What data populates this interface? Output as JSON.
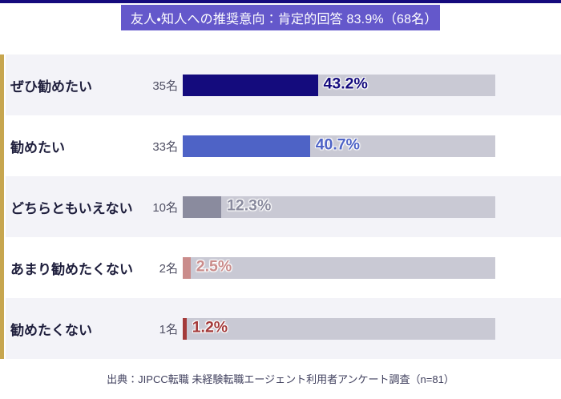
{
  "title": {
    "text": "友人・知人への推奨意向：肯定的回答 83.9%（68名）",
    "bg_color": "#6458cb",
    "text_color": "#ffffff"
  },
  "footer": {
    "text": "出典：JIPCC転職 未経験転職エージェント利用者アンケート調査（n=81）"
  },
  "colors": {
    "top_strip": "#150b7d",
    "left_accent": "#c7a64f",
    "row_band": "#f3f3f8",
    "row_alt": "#ffffff",
    "bar_track": "#c9c9d4"
  },
  "chart_data": {
    "type": "bar",
    "orientation": "horizontal",
    "title": "友人・知人への推奨意向：肯定的回答 83.9%（68名）",
    "categories": [
      "ぜひ勧めたい",
      "勧めたい",
      "どちらともいえない",
      "あまり勧めたくない",
      "勧めたくない"
    ],
    "counts": [
      "35名",
      "33名",
      "10名",
      "2名",
      "1名"
    ],
    "values": [
      43.2,
      40.7,
      12.3,
      2.5,
      1.2
    ],
    "value_labels": [
      "43.2%",
      "40.7%",
      "12.3%",
      "2.5%",
      "1.2%"
    ],
    "bar_colors": [
      "#140b7d",
      "#4e63c6",
      "#8a8b9e",
      "#ca8c8b",
      "#a43a3a"
    ],
    "xlim": [
      0,
      100
    ],
    "grid": false,
    "legend": false,
    "source_note": "出典：JIPCC転職 未経験転職エージェント利用者アンケート調査（n=81）"
  }
}
